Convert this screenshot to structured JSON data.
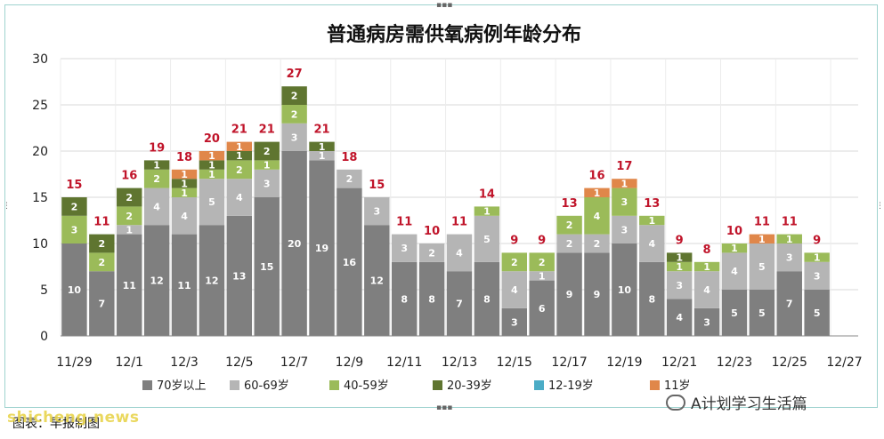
{
  "chart_data": {
    "type": "bar",
    "stacked": true,
    "title": "普通病房需供氧病例年龄分布",
    "ylim": [
      0,
      30
    ],
    "yticks": [
      0,
      5,
      10,
      15,
      20,
      25,
      30
    ],
    "x_tick_labels": [
      "11/29",
      "12/1",
      "12/3",
      "12/5",
      "12/7",
      "12/9",
      "12/11",
      "12/13",
      "12/15",
      "12/17",
      "12/19",
      "12/21",
      "12/23",
      "12/25",
      "12/27"
    ],
    "categories": [
      "11/29",
      "11/30",
      "12/1",
      "12/2",
      "12/3",
      "12/4",
      "12/5",
      "12/6",
      "12/7",
      "12/8",
      "12/9",
      "12/10",
      "12/11",
      "12/12",
      "12/13",
      "12/14",
      "12/15",
      "12/16",
      "12/17",
      "12/18",
      "12/19",
      "12/20",
      "12/21",
      "12/22",
      "12/23",
      "12/24",
      "12/25",
      "12/26",
      "12/27"
    ],
    "series": [
      {
        "name": "70岁以上",
        "color": "#7f7f7f",
        "values": [
          10,
          7,
          11,
          12,
          11,
          12,
          13,
          15,
          20,
          19,
          16,
          12,
          8,
          8,
          7,
          8,
          3,
          6,
          9,
          9,
          10,
          8,
          4,
          3,
          5,
          5,
          7,
          5,
          0
        ]
      },
      {
        "name": "60-69岁",
        "color": "#b5b5b5",
        "values": [
          0,
          0,
          1,
          4,
          4,
          5,
          4,
          3,
          3,
          1,
          2,
          3,
          3,
          2,
          4,
          5,
          4,
          1,
          2,
          2,
          3,
          4,
          3,
          4,
          4,
          5,
          3,
          3,
          0
        ]
      },
      {
        "name": "40-59岁",
        "color": "#9bbb59",
        "values": [
          3,
          2,
          2,
          2,
          1,
          1,
          2,
          1,
          2,
          0,
          0,
          0,
          0,
          0,
          0,
          1,
          2,
          2,
          2,
          4,
          3,
          1,
          1,
          1,
          1,
          0,
          1,
          1,
          0
        ]
      },
      {
        "name": "20-39岁",
        "color": "#5f7530",
        "values": [
          2,
          2,
          2,
          1,
          1,
          1,
          1,
          2,
          2,
          1,
          0,
          0,
          0,
          0,
          0,
          0,
          0,
          0,
          0,
          0,
          0,
          0,
          1,
          0,
          0,
          0,
          0,
          0,
          0
        ]
      },
      {
        "name": "12-19岁",
        "color": "#4bacc6",
        "values": [
          0,
          0,
          0,
          0,
          0,
          0,
          0,
          0,
          0,
          0,
          0,
          0,
          0,
          0,
          0,
          0,
          0,
          0,
          0,
          0,
          0,
          0,
          0,
          0,
          0,
          0,
          0,
          0,
          0
        ]
      },
      {
        "name": "11岁",
        "color": "#e0874a",
        "values": [
          0,
          0,
          0,
          0,
          1,
          1,
          1,
          0,
          0,
          0,
          0,
          0,
          0,
          0,
          0,
          0,
          0,
          0,
          0,
          1,
          1,
          0,
          0,
          0,
          0,
          1,
          0,
          0,
          0
        ]
      }
    ],
    "totals": [
      15,
      11,
      16,
      19,
      18,
      20,
      21,
      21,
      27,
      21,
      18,
      15,
      11,
      10,
      11,
      14,
      9,
      9,
      13,
      16,
      17,
      13,
      9,
      8,
      10,
      11,
      11,
      9,
      null
    ],
    "legend_position": "bottom",
    "grid": true
  },
  "footer": {
    "caption": "图表：早报制图",
    "site_watermark": "shicheng.news",
    "wechat_watermark": "A计划学习生活篇"
  }
}
